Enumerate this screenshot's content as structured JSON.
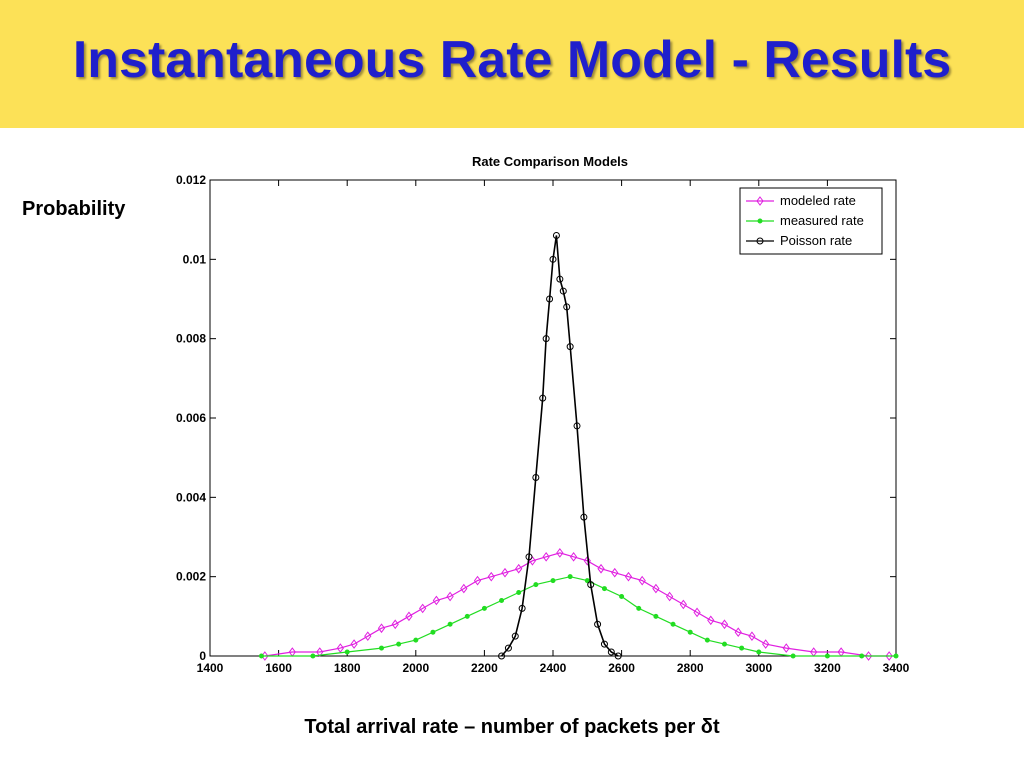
{
  "slide": {
    "title": "Instantaneous Rate Model - Results",
    "y_side_label": "Probability",
    "x_bottom_label": "Total arrival rate – number of packets per δt"
  },
  "colors": {
    "banner": "#fce157",
    "title": "#1f1fcc",
    "modeled": "#e020e0",
    "measured": "#22dd22",
    "poisson": "#000000"
  },
  "chart_data": {
    "type": "line",
    "title": "Rate Comparison Models",
    "xlabel": "",
    "ylabel": "",
    "xlim": [
      1400,
      3400
    ],
    "ylim": [
      0,
      0.012
    ],
    "xticks": [
      "1400",
      "1600",
      "1800",
      "2000",
      "2200",
      "2400",
      "2600",
      "2800",
      "3000",
      "3200",
      "3400"
    ],
    "yticks": [
      "0",
      "0.002",
      "0.004",
      "0.006",
      "0.008",
      "0.01",
      "0.012"
    ],
    "grid": false,
    "legend_position": "top-right",
    "series": [
      {
        "name": "modeled rate",
        "marker": "diamond",
        "x": [
          1560,
          1640,
          1720,
          1780,
          1820,
          1860,
          1900,
          1940,
          1980,
          2020,
          2060,
          2100,
          2140,
          2180,
          2220,
          2260,
          2300,
          2340,
          2380,
          2420,
          2460,
          2500,
          2540,
          2580,
          2620,
          2660,
          2700,
          2740,
          2780,
          2820,
          2860,
          2900,
          2940,
          2980,
          3020,
          3080,
          3160,
          3240,
          3320,
          3380
        ],
        "y": [
          0.0,
          0.0001,
          0.0001,
          0.0002,
          0.0003,
          0.0005,
          0.0007,
          0.0008,
          0.001,
          0.0012,
          0.0014,
          0.0015,
          0.0017,
          0.0019,
          0.002,
          0.0021,
          0.0022,
          0.0024,
          0.0025,
          0.0026,
          0.0025,
          0.0024,
          0.0022,
          0.0021,
          0.002,
          0.0019,
          0.0017,
          0.0015,
          0.0013,
          0.0011,
          0.0009,
          0.0008,
          0.0006,
          0.0005,
          0.0003,
          0.0002,
          0.0001,
          0.0001,
          0.0,
          0.0
        ]
      },
      {
        "name": "measured rate",
        "marker": "dot",
        "x": [
          1550,
          1700,
          1800,
          1900,
          1950,
          2000,
          2050,
          2100,
          2150,
          2200,
          2250,
          2300,
          2350,
          2400,
          2450,
          2500,
          2550,
          2600,
          2650,
          2700,
          2750,
          2800,
          2850,
          2900,
          2950,
          3000,
          3100,
          3200,
          3300,
          3400
        ],
        "y": [
          0.0,
          0.0,
          0.0001,
          0.0002,
          0.0003,
          0.0004,
          0.0006,
          0.0008,
          0.001,
          0.0012,
          0.0014,
          0.0016,
          0.0018,
          0.0019,
          0.002,
          0.0019,
          0.0017,
          0.0015,
          0.0012,
          0.001,
          0.0008,
          0.0006,
          0.0004,
          0.0003,
          0.0002,
          0.0001,
          0.0,
          0.0,
          0.0,
          0.0
        ]
      },
      {
        "name": "Poisson rate",
        "marker": "circle",
        "x": [
          2250,
          2270,
          2290,
          2310,
          2330,
          2350,
          2370,
          2380,
          2390,
          2400,
          2410,
          2420,
          2430,
          2440,
          2450,
          2470,
          2490,
          2510,
          2530,
          2550,
          2570,
          2590
        ],
        "y": [
          0.0,
          0.0002,
          0.0005,
          0.0012,
          0.0025,
          0.0045,
          0.0065,
          0.008,
          0.009,
          0.01,
          0.0106,
          0.0095,
          0.0092,
          0.0088,
          0.0078,
          0.0058,
          0.0035,
          0.0018,
          0.0008,
          0.0003,
          0.0001,
          0.0
        ]
      }
    ]
  }
}
